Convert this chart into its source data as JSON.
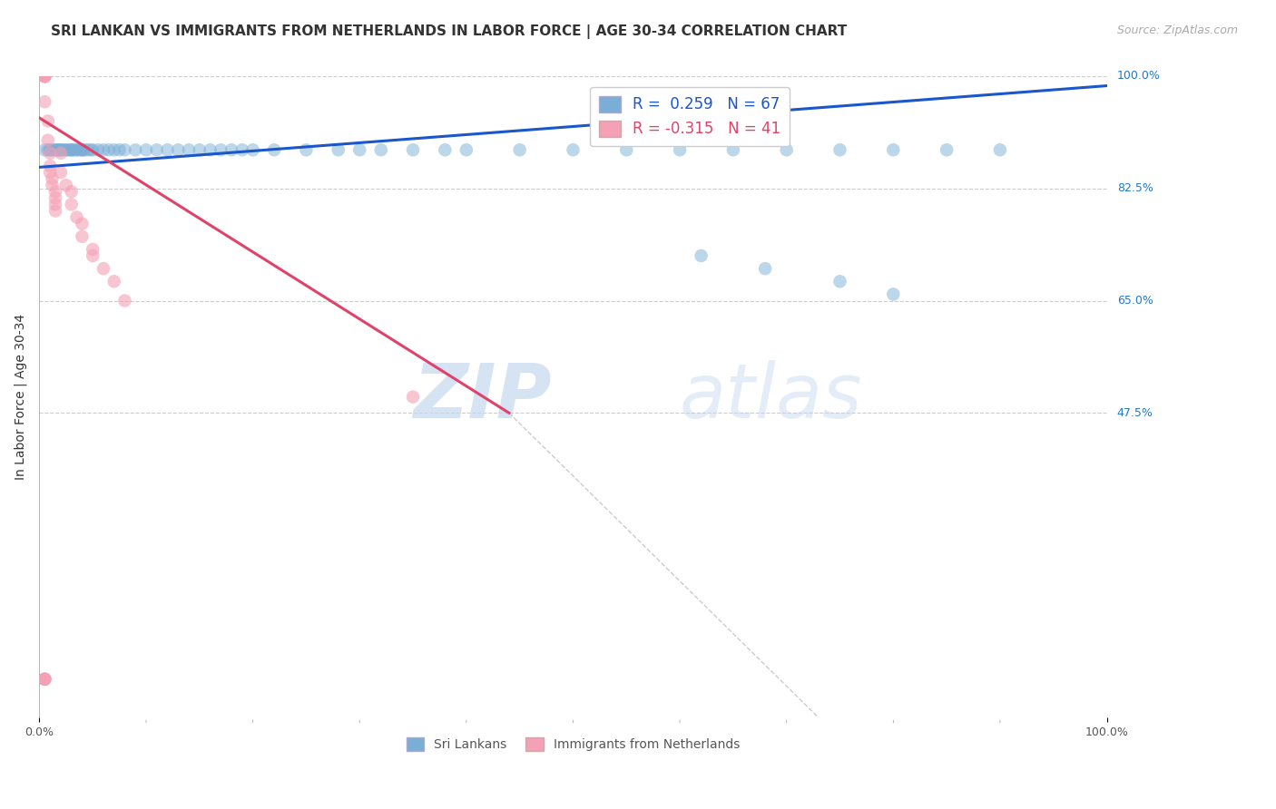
{
  "title": "SRI LANKAN VS IMMIGRANTS FROM NETHERLANDS IN LABOR FORCE | AGE 30-34 CORRELATION CHART",
  "source": "Source: ZipAtlas.com",
  "ylabel": "In Labor Force | Age 30-34",
  "xlim": [
    0.0,
    1.0
  ],
  "ylim": [
    0.0,
    1.0
  ],
  "ytick_positions": [
    1.0,
    0.825,
    0.65,
    0.475
  ],
  "ytick_labels": [
    "100.0%",
    "82.5%",
    "65.0%",
    "47.5%"
  ],
  "grid_color": "#cccccc",
  "blue_scatter_x": [
    0.005,
    0.008,
    0.01,
    0.01,
    0.012,
    0.015,
    0.015,
    0.017,
    0.018,
    0.02,
    0.02,
    0.022,
    0.025,
    0.025,
    0.028,
    0.03,
    0.03,
    0.032,
    0.035,
    0.035,
    0.038,
    0.04,
    0.04,
    0.042,
    0.045,
    0.048,
    0.05,
    0.055,
    0.06,
    0.065,
    0.07,
    0.075,
    0.08,
    0.09,
    0.1,
    0.11,
    0.12,
    0.13,
    0.14,
    0.15,
    0.16,
    0.17,
    0.18,
    0.19,
    0.2,
    0.22,
    0.25,
    0.28,
    0.3,
    0.32,
    0.35,
    0.38,
    0.4,
    0.45,
    0.5,
    0.55,
    0.6,
    0.65,
    0.7,
    0.75,
    0.8,
    0.85,
    0.9,
    0.62,
    0.68,
    0.75,
    0.8
  ],
  "blue_scatter_y": [
    0.885,
    0.885,
    0.885,
    0.885,
    0.885,
    0.885,
    0.885,
    0.885,
    0.885,
    0.885,
    0.885,
    0.885,
    0.885,
    0.885,
    0.885,
    0.885,
    0.885,
    0.885,
    0.885,
    0.885,
    0.885,
    0.885,
    0.885,
    0.885,
    0.885,
    0.885,
    0.885,
    0.885,
    0.885,
    0.885,
    0.885,
    0.885,
    0.885,
    0.885,
    0.885,
    0.885,
    0.885,
    0.885,
    0.885,
    0.885,
    0.885,
    0.885,
    0.885,
    0.885,
    0.885,
    0.885,
    0.885,
    0.885,
    0.885,
    0.885,
    0.885,
    0.885,
    0.885,
    0.885,
    0.885,
    0.885,
    0.885,
    0.885,
    0.885,
    0.885,
    0.885,
    0.885,
    0.885,
    0.72,
    0.7,
    0.68,
    0.66
  ],
  "pink_scatter_x": [
    0.005,
    0.005,
    0.005,
    0.005,
    0.005,
    0.005,
    0.005,
    0.005,
    0.005,
    0.005,
    0.005,
    0.008,
    0.008,
    0.01,
    0.01,
    0.01,
    0.012,
    0.012,
    0.015,
    0.015,
    0.015,
    0.015,
    0.02,
    0.02,
    0.025,
    0.03,
    0.03,
    0.035,
    0.04,
    0.04,
    0.05,
    0.05,
    0.06,
    0.07,
    0.08,
    0.35,
    0.005,
    0.005,
    0.005,
    0.005,
    0.005
  ],
  "pink_scatter_y": [
    1.0,
    1.0,
    1.0,
    1.0,
    1.0,
    1.0,
    1.0,
    1.0,
    1.0,
    1.0,
    0.96,
    0.93,
    0.9,
    0.88,
    0.86,
    0.85,
    0.84,
    0.83,
    0.82,
    0.81,
    0.8,
    0.79,
    0.88,
    0.85,
    0.83,
    0.82,
    0.8,
    0.78,
    0.77,
    0.75,
    0.73,
    0.72,
    0.7,
    0.68,
    0.65,
    0.5,
    0.06,
    0.06,
    0.06,
    0.06,
    0.06
  ],
  "blue_line_x": [
    0.0,
    1.0
  ],
  "blue_line_y": [
    0.858,
    0.985
  ],
  "pink_line_x": [
    0.0,
    0.44
  ],
  "pink_line_y": [
    0.935,
    0.475
  ],
  "dashed_line_x": [
    0.44,
    0.73
  ],
  "dashed_line_y": [
    0.475,
    0.0
  ],
  "blue_color": "#7aaed6",
  "pink_color": "#f4a0b5",
  "blue_line_color": "#1a56cc",
  "pink_line_color": "#e0436a",
  "dashed_color": "#cccccc",
  "legend_blue_label": "R =  0.259   N = 67",
  "legend_pink_label": "R = -0.315   N = 41",
  "bottom_legend_blue": "Sri Lankans",
  "bottom_legend_pink": "Immigrants from Netherlands",
  "title_fontsize": 11,
  "source_fontsize": 9,
  "axis_label_fontsize": 10,
  "scatter_size": 110
}
